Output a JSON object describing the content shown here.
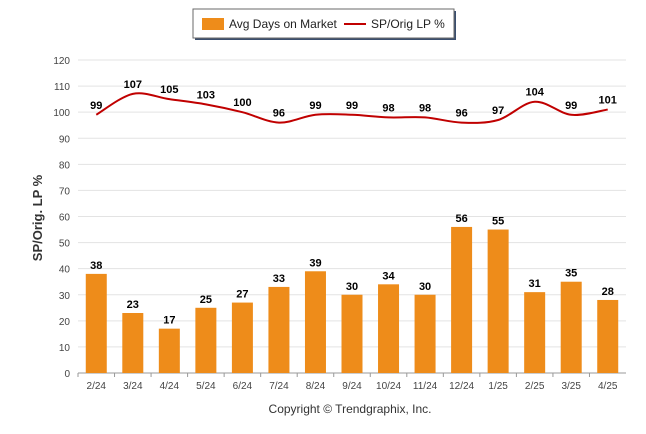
{
  "chart_data": {
    "type": "bar",
    "categories": [
      "2/24",
      "3/24",
      "4/24",
      "5/24",
      "6/24",
      "7/24",
      "8/24",
      "9/24",
      "10/24",
      "11/24",
      "12/24",
      "1/25",
      "2/25",
      "3/25",
      "4/25"
    ],
    "series": [
      {
        "name": "Avg Days on Market",
        "type": "bar",
        "color": "#ee8c1a",
        "values": [
          38,
          23,
          17,
          25,
          27,
          33,
          39,
          30,
          34,
          30,
          56,
          55,
          31,
          35,
          28
        ]
      },
      {
        "name": "SP/Orig LP %",
        "type": "line",
        "color": "#c00000",
        "values": [
          99,
          107,
          105,
          103,
          100,
          96,
          99,
          99,
          98,
          98,
          96,
          97,
          104,
          99,
          101
        ]
      }
    ],
    "ylabel": "SP/Orig. LP %",
    "ylim": [
      0,
      120
    ],
    "yticks": [
      0,
      10,
      20,
      30,
      40,
      50,
      60,
      70,
      80,
      90,
      100,
      110,
      120
    ],
    "grid": true,
    "legend_position": "top-center"
  },
  "copyright": "Copyright © Trendgraphix, Inc."
}
